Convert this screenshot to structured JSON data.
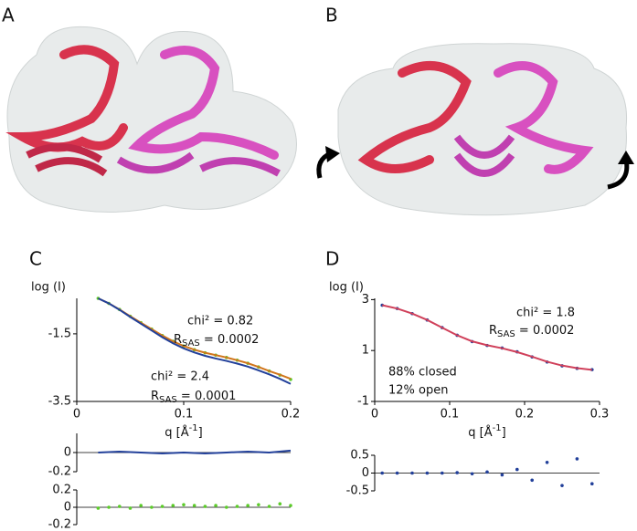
{
  "panels": [
    "A",
    "B",
    "C",
    "D"
  ],
  "chart_data": [
    {
      "type": "line",
      "ylabel": "log (I)",
      "xlabel": "q [Å",
      "xlabel_sup": "-1",
      "xlabel_end": "]",
      "xlim": [
        0,
        0.2
      ],
      "xticks": [
        0,
        0.1,
        0.2
      ],
      "ylim": [
        -3.5,
        -0.45
      ],
      "yticks": [
        -1.5,
        -3.5
      ],
      "x": [
        0.02,
        0.03,
        0.04,
        0.05,
        0.06,
        0.07,
        0.08,
        0.09,
        0.1,
        0.11,
        0.12,
        0.13,
        0.14,
        0.15,
        0.16,
        0.17,
        0.18,
        0.19,
        0.2
      ],
      "series": [
        {
          "style": "points",
          "color": "#5ccc2a",
          "values": [
            -0.45,
            -0.6,
            -0.78,
            -0.98,
            -1.17,
            -1.36,
            -1.55,
            -1.72,
            -1.86,
            -1.97,
            -2.06,
            -2.13,
            -2.2,
            -2.28,
            -2.37,
            -2.48,
            -2.6,
            -2.72,
            -2.85
          ]
        },
        {
          "style": "line",
          "color": "#d0761c",
          "values": [
            -0.45,
            -0.6,
            -0.78,
            -0.98,
            -1.17,
            -1.36,
            -1.55,
            -1.72,
            -1.86,
            -1.97,
            -2.06,
            -2.13,
            -2.2,
            -2.28,
            -2.37,
            -2.48,
            -2.6,
            -2.71,
            -2.83
          ]
        },
        {
          "style": "line",
          "color": "#22409a",
          "values": [
            -0.45,
            -0.6,
            -0.79,
            -1.0,
            -1.2,
            -1.4,
            -1.6,
            -1.78,
            -1.93,
            -2.05,
            -2.15,
            -2.23,
            -2.3,
            -2.38,
            -2.47,
            -2.58,
            -2.7,
            -2.83,
            -2.98
          ]
        }
      ],
      "annotations": [
        "chi² = 0.82",
        {
          "text": "R",
          "sub": "SAS",
          "tail": " = 0.0002"
        },
        "chi² = 2.4",
        {
          "text": "R",
          "sub": "SAS",
          "tail": " = 0.0001"
        }
      ]
    },
    {
      "type": "line",
      "xlim": [
        0,
        0.2
      ],
      "ylim": [
        -0.2,
        0.2
      ],
      "yticks": [
        0,
        -0.2
      ],
      "refline": 0,
      "x": [
        0.02,
        0.04,
        0.06,
        0.08,
        0.1,
        0.12,
        0.14,
        0.16,
        0.18,
        0.2
      ],
      "series": [
        {
          "style": "line",
          "color": "#22409a",
          "values": [
            0.0,
            0.01,
            0.0,
            -0.01,
            0.0,
            -0.01,
            0.0,
            0.01,
            0.0,
            0.02
          ]
        }
      ]
    },
    {
      "type": "line",
      "xlim": [
        0,
        0.2
      ],
      "ylim": [
        -0.2,
        0.2
      ],
      "yticks": [
        0.2,
        0,
        -0.2
      ],
      "refline": 0,
      "x": [
        0.02,
        0.03,
        0.04,
        0.05,
        0.06,
        0.07,
        0.08,
        0.09,
        0.1,
        0.11,
        0.12,
        0.13,
        0.14,
        0.15,
        0.16,
        0.17,
        0.18,
        0.19,
        0.2
      ],
      "series": [
        {
          "style": "points",
          "color": "#5ccc2a",
          "values": [
            -0.01,
            0.0,
            0.01,
            -0.01,
            0.02,
            0.0,
            0.01,
            0.02,
            0.03,
            0.02,
            0.01,
            0.02,
            0.0,
            0.01,
            0.02,
            0.03,
            0.01,
            0.04,
            0.02
          ]
        }
      ]
    },
    {
      "type": "line",
      "ylabel": "log (I)",
      "xlabel": "q [Å",
      "xlabel_sup": "-1",
      "xlabel_end": "]",
      "xlim": [
        0,
        0.3
      ],
      "xticks": [
        0,
        0.1,
        0.2,
        0.3
      ],
      "ylim": [
        -1,
        3.05
      ],
      "yticks": [
        3,
        1,
        -1
      ],
      "x": [
        0.01,
        0.03,
        0.05,
        0.07,
        0.09,
        0.11,
        0.13,
        0.15,
        0.17,
        0.19,
        0.21,
        0.23,
        0.25,
        0.27,
        0.29
      ],
      "series": [
        {
          "style": "points",
          "color": "#22409a",
          "values": [
            2.78,
            2.65,
            2.45,
            2.2,
            1.9,
            1.6,
            1.35,
            1.2,
            1.1,
            0.95,
            0.75,
            0.55,
            0.4,
            0.3,
            0.25
          ]
        },
        {
          "style": "line",
          "color": "#d0405a",
          "values": [
            2.78,
            2.65,
            2.45,
            2.2,
            1.9,
            1.6,
            1.36,
            1.21,
            1.09,
            0.94,
            0.76,
            0.56,
            0.41,
            0.31,
            0.24
          ]
        }
      ],
      "annotations": [
        "chi² = 1.8",
        {
          "text": "R",
          "sub": "SAS",
          "tail": " = 0.0002"
        },
        "88% closed",
        "12% open"
      ]
    },
    {
      "type": "line",
      "xlim": [
        0,
        0.3
      ],
      "ylim": [
        -0.5,
        0.5
      ],
      "yticks": [
        0.5,
        0,
        -0.5
      ],
      "refline": 0,
      "x": [
        0.01,
        0.03,
        0.05,
        0.07,
        0.09,
        0.11,
        0.13,
        0.15,
        0.17,
        0.19,
        0.21,
        0.23,
        0.25,
        0.27,
        0.29
      ],
      "series": [
        {
          "style": "points",
          "color": "#22409a",
          "values": [
            0.0,
            0.0,
            0.0,
            0.0,
            0.0,
            0.01,
            -0.02,
            0.03,
            -0.05,
            0.1,
            -0.2,
            0.3,
            -0.35,
            0.4,
            -0.3
          ]
        }
      ]
    }
  ]
}
